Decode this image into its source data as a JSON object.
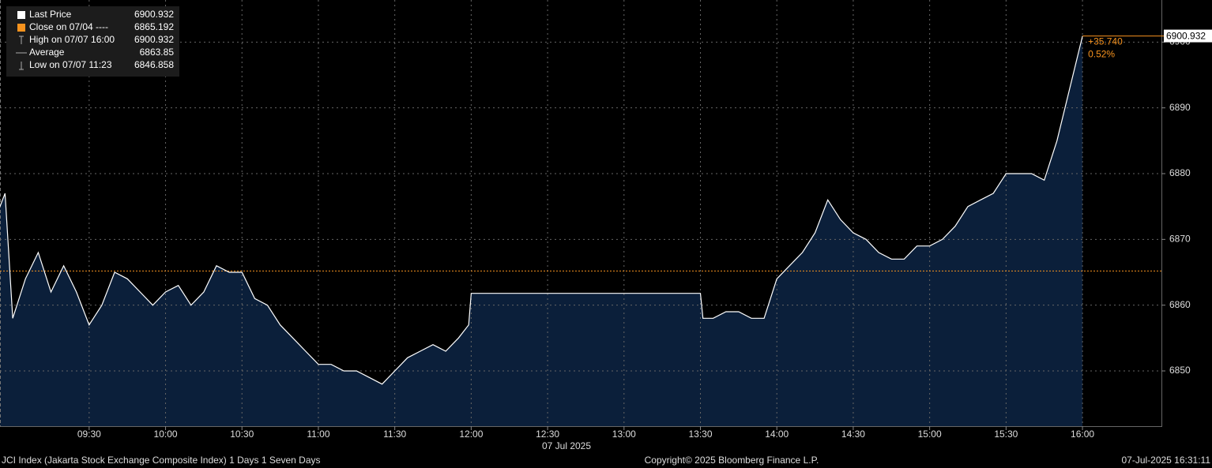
{
  "chart_data": {
    "type": "area",
    "x": [
      "08:55",
      "08:57",
      "09:00",
      "09:05",
      "09:10",
      "09:15",
      "09:20",
      "09:25",
      "09:30",
      "09:35",
      "09:40",
      "09:45",
      "09:50",
      "09:55",
      "10:00",
      "10:05",
      "10:10",
      "10:15",
      "10:20",
      "10:25",
      "10:30",
      "10:35",
      "10:40",
      "10:45",
      "10:50",
      "10:55",
      "11:00",
      "11:05",
      "11:10",
      "11:15",
      "11:20",
      "11:25",
      "11:30",
      "11:35",
      "11:40",
      "11:45",
      "11:50",
      "11:55",
      "11:59",
      "12:00",
      "13:30",
      "13:31",
      "13:35",
      "13:40",
      "13:45",
      "13:50",
      "13:55",
      "14:00",
      "14:05",
      "14:10",
      "14:15",
      "14:20",
      "14:25",
      "14:30",
      "14:35",
      "14:40",
      "14:45",
      "14:50",
      "14:55",
      "15:00",
      "15:05",
      "15:10",
      "15:15",
      "15:20",
      "15:25",
      "15:30",
      "15:35",
      "15:40",
      "15:45",
      "15:50",
      "16:00"
    ],
    "values": [
      6875,
      6877,
      6858,
      6864,
      6868,
      6862,
      6866,
      6862,
      6857,
      6860,
      6865,
      6864,
      6862,
      6860,
      6862,
      6863,
      6860,
      6862,
      6866,
      6865,
      6865,
      6861,
      6860,
      6857,
      6855,
      6853,
      6851,
      6851,
      6850,
      6850,
      6849,
      6848,
      6850,
      6852,
      6853,
      6854,
      6853,
      6855,
      6857,
      6861.8,
      6861.8,
      6858,
      6858,
      6859,
      6859,
      6858,
      6858,
      6864,
      6866,
      6868,
      6871,
      6876,
      6873,
      6871,
      6870,
      6868,
      6867,
      6867,
      6869,
      6869,
      6870,
      6872,
      6875,
      6876,
      6877,
      6880,
      6880,
      6880,
      6879,
      6885,
      6900.932
    ],
    "color": "#ffffff",
    "fill": "#0b1f3a",
    "xlim": [
      "08:55",
      "16:31"
    ],
    "xticks": [
      "09:30",
      "10:00",
      "10:30",
      "11:00",
      "11:30",
      "12:00",
      "12:30",
      "13:00",
      "13:30",
      "14:00",
      "14:30",
      "15:00",
      "15:30",
      "16:00"
    ],
    "date_label": "07 Jul 2025",
    "ylim": [
      6841.6,
      6906.4
    ],
    "yticks": [
      6850,
      6860,
      6870,
      6880,
      6890,
      6900
    ],
    "grid": true,
    "legend": [
      {
        "label": "Last Price",
        "value": 6900.932
      },
      {
        "label": "Close on 07/04 ----",
        "value": 6865.192
      },
      {
        "label": "High on 07/07 16:00",
        "value": 6900.932
      },
      {
        "label": "Average",
        "value": 6863.85
      },
      {
        "label": "Low on 07/07 11:23",
        "value": 6846.858
      }
    ],
    "change": {
      "value": 35.74,
      "label": "+35.740"
    },
    "change_pct": {
      "value": 0.52,
      "label": "0.52%"
    },
    "footer_left": "JCI Index (Jakarta Stock Exchange Composite Index) 1 Days 1 Seven Days",
    "footer_center": "Copyright© 2025 Bloomberg Finance L.P.",
    "footer_right": "07-Jul-2025 16:31:11"
  }
}
